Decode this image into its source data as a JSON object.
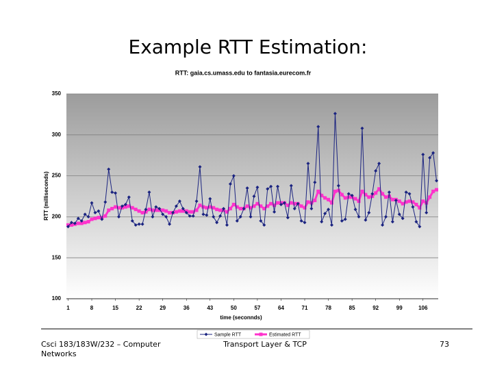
{
  "slide_title": "Example RTT Estimation:",
  "footer": {
    "left": "Csci 183/183W/232 – Computer Networks",
    "center": "Transport Layer & TCP",
    "page": "73"
  },
  "chart_data": {
    "type": "line",
    "title": "RTT: gaia.cs.umass.edu to fantasia.eurecom.fr",
    "x_label": "time (seconnds)",
    "y_label": "RTT (milliseconds)",
    "xlim": [
      0.5,
      110.5
    ],
    "xticks": [
      1,
      8,
      15,
      22,
      29,
      36,
      43,
      50,
      57,
      64,
      71,
      78,
      85,
      92,
      99,
      106
    ],
    "ylim": [
      100,
      350
    ],
    "yticks": [
      100,
      150,
      200,
      250,
      300,
      350
    ],
    "grid": true,
    "x": [
      1,
      2,
      3,
      4,
      5,
      6,
      7,
      8,
      9,
      10,
      11,
      12,
      13,
      14,
      15,
      16,
      17,
      18,
      19,
      20,
      21,
      22,
      23,
      24,
      25,
      26,
      27,
      28,
      29,
      30,
      31,
      32,
      33,
      34,
      35,
      36,
      37,
      38,
      39,
      40,
      41,
      42,
      43,
      44,
      45,
      46,
      47,
      48,
      49,
      50,
      51,
      52,
      53,
      54,
      55,
      56,
      57,
      58,
      59,
      60,
      61,
      62,
      63,
      64,
      65,
      66,
      67,
      68,
      69,
      70,
      71,
      72,
      73,
      74,
      75,
      76,
      77,
      78,
      79,
      80,
      81,
      82,
      83,
      84,
      85,
      86,
      87,
      88,
      89,
      90,
      91,
      92,
      93,
      94,
      95,
      96,
      97,
      98,
      99,
      100,
      101,
      102,
      103,
      104,
      105,
      106,
      107,
      108,
      109,
      110
    ],
    "series": [
      {
        "name": "Sample RTT",
        "color": "#1a2380",
        "values": [
          188,
          193,
          192,
          198,
          195,
          203,
          200,
          217,
          205,
          207,
          197,
          218,
          258,
          230,
          229,
          200,
          213,
          215,
          224,
          195,
          190,
          191,
          191,
          209,
          230,
          200,
          212,
          210,
          203,
          200,
          191,
          205,
          213,
          219,
          210,
          205,
          201,
          201,
          219,
          261,
          203,
          202,
          222,
          200,
          193,
          201,
          210,
          190,
          240,
          250,
          195,
          200,
          210,
          235,
          200,
          225,
          236,
          195,
          190,
          234,
          237,
          206,
          237,
          215,
          217,
          199,
          238,
          210,
          216,
          195,
          193,
          265,
          210,
          242,
          310,
          194,
          204,
          209,
          190,
          326,
          238,
          195,
          197,
          228,
          226,
          209,
          200,
          308,
          196,
          205,
          228,
          256,
          265,
          190,
          200,
          230,
          194,
          220,
          203,
          198,
          230,
          228,
          212,
          194,
          188,
          276,
          205,
          272,
          278,
          244
        ]
      },
      {
        "name": "Estimated RTT",
        "color": "#ff33cc",
        "values": [
          190,
          190,
          191,
          192,
          192,
          193,
          194,
          197,
          198,
          199,
          199,
          201,
          208,
          210,
          212,
          211,
          211,
          212,
          213,
          211,
          209,
          207,
          205,
          206,
          209,
          208,
          208,
          208,
          208,
          207,
          205,
          205,
          206,
          207,
          207,
          207,
          206,
          206,
          208,
          214,
          212,
          211,
          212,
          211,
          209,
          208,
          208,
          206,
          210,
          215,
          212,
          210,
          210,
          213,
          211,
          213,
          216,
          213,
          210,
          213,
          216,
          214,
          217,
          217,
          217,
          214,
          217,
          216,
          216,
          213,
          211,
          218,
          217,
          220,
          231,
          226,
          223,
          221,
          217,
          231,
          232,
          227,
          223,
          224,
          224,
          222,
          219,
          231,
          227,
          224,
          225,
          229,
          234,
          228,
          224,
          225,
          221,
          221,
          219,
          216,
          218,
          219,
          218,
          215,
          211,
          219,
          217,
          224,
          231,
          233
        ]
      }
    ]
  }
}
